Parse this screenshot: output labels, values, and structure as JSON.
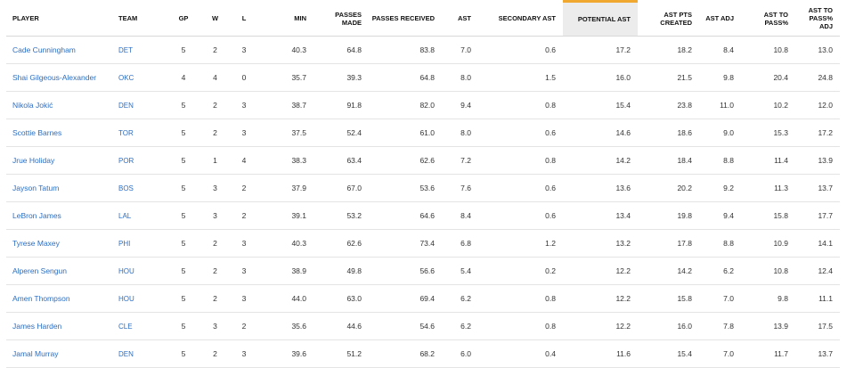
{
  "columns": [
    {
      "key": "player",
      "label": "PLAYER"
    },
    {
      "key": "team",
      "label": "TEAM"
    },
    {
      "key": "gp",
      "label": "GP"
    },
    {
      "key": "w",
      "label": "W"
    },
    {
      "key": "l",
      "label": "L"
    },
    {
      "key": "min",
      "label": "MIN"
    },
    {
      "key": "passes_made",
      "label": "PASSES MADE"
    },
    {
      "key": "passes_received",
      "label": "PASSES RECEIVED"
    },
    {
      "key": "ast",
      "label": "AST"
    },
    {
      "key": "secondary_ast",
      "label": "SECONDARY AST"
    },
    {
      "key": "potential_ast",
      "label": "POTENTIAL AST"
    },
    {
      "key": "ast_pts_created",
      "label": "AST PTS CREATED"
    },
    {
      "key": "ast_adj",
      "label": "AST ADJ"
    },
    {
      "key": "ast_to_pass",
      "label": "AST TO PASS%"
    },
    {
      "key": "ast_to_pass_adj",
      "label": "AST TO PASS% ADJ"
    }
  ],
  "sorted_column": "potential_ast",
  "accent_color": "#f0a830",
  "link_color": "#2b6ec3",
  "rows": [
    {
      "player": "Cade Cunningham",
      "team": "DET",
      "gp": "5",
      "w": "2",
      "l": "3",
      "min": "40.3",
      "passes_made": "64.8",
      "passes_received": "83.8",
      "ast": "7.0",
      "secondary_ast": "0.6",
      "potential_ast": "17.2",
      "ast_pts_created": "18.2",
      "ast_adj": "8.4",
      "ast_to_pass": "10.8",
      "ast_to_pass_adj": "13.0"
    },
    {
      "player": "Shai Gilgeous-Alexander",
      "team": "OKC",
      "gp": "4",
      "w": "4",
      "l": "0",
      "min": "35.7",
      "passes_made": "39.3",
      "passes_received": "64.8",
      "ast": "8.0",
      "secondary_ast": "1.5",
      "potential_ast": "16.0",
      "ast_pts_created": "21.5",
      "ast_adj": "9.8",
      "ast_to_pass": "20.4",
      "ast_to_pass_adj": "24.8"
    },
    {
      "player": "Nikola Jokić",
      "team": "DEN",
      "gp": "5",
      "w": "2",
      "l": "3",
      "min": "38.7",
      "passes_made": "91.8",
      "passes_received": "82.0",
      "ast": "9.4",
      "secondary_ast": "0.8",
      "potential_ast": "15.4",
      "ast_pts_created": "23.8",
      "ast_adj": "11.0",
      "ast_to_pass": "10.2",
      "ast_to_pass_adj": "12.0"
    },
    {
      "player": "Scottie Barnes",
      "team": "TOR",
      "gp": "5",
      "w": "2",
      "l": "3",
      "min": "37.5",
      "passes_made": "52.4",
      "passes_received": "61.0",
      "ast": "8.0",
      "secondary_ast": "0.6",
      "potential_ast": "14.6",
      "ast_pts_created": "18.6",
      "ast_adj": "9.0",
      "ast_to_pass": "15.3",
      "ast_to_pass_adj": "17.2"
    },
    {
      "player": "Jrue Holiday",
      "team": "POR",
      "gp": "5",
      "w": "1",
      "l": "4",
      "min": "38.3",
      "passes_made": "63.4",
      "passes_received": "62.6",
      "ast": "7.2",
      "secondary_ast": "0.8",
      "potential_ast": "14.2",
      "ast_pts_created": "18.4",
      "ast_adj": "8.8",
      "ast_to_pass": "11.4",
      "ast_to_pass_adj": "13.9"
    },
    {
      "player": "Jayson Tatum",
      "team": "BOS",
      "gp": "5",
      "w": "3",
      "l": "2",
      "min": "37.9",
      "passes_made": "67.0",
      "passes_received": "53.6",
      "ast": "7.6",
      "secondary_ast": "0.6",
      "potential_ast": "13.6",
      "ast_pts_created": "20.2",
      "ast_adj": "9.2",
      "ast_to_pass": "11.3",
      "ast_to_pass_adj": "13.7"
    },
    {
      "player": "LeBron James",
      "team": "LAL",
      "gp": "5",
      "w": "3",
      "l": "2",
      "min": "39.1",
      "passes_made": "53.2",
      "passes_received": "64.6",
      "ast": "8.4",
      "secondary_ast": "0.6",
      "potential_ast": "13.4",
      "ast_pts_created": "19.8",
      "ast_adj": "9.4",
      "ast_to_pass": "15.8",
      "ast_to_pass_adj": "17.7"
    },
    {
      "player": "Tyrese Maxey",
      "team": "PHI",
      "gp": "5",
      "w": "2",
      "l": "3",
      "min": "40.3",
      "passes_made": "62.6",
      "passes_received": "73.4",
      "ast": "6.8",
      "secondary_ast": "1.2",
      "potential_ast": "13.2",
      "ast_pts_created": "17.8",
      "ast_adj": "8.8",
      "ast_to_pass": "10.9",
      "ast_to_pass_adj": "14.1"
    },
    {
      "player": "Alperen Sengun",
      "team": "HOU",
      "gp": "5",
      "w": "2",
      "l": "3",
      "min": "38.9",
      "passes_made": "49.8",
      "passes_received": "56.6",
      "ast": "5.4",
      "secondary_ast": "0.2",
      "potential_ast": "12.2",
      "ast_pts_created": "14.2",
      "ast_adj": "6.2",
      "ast_to_pass": "10.8",
      "ast_to_pass_adj": "12.4"
    },
    {
      "player": "Amen Thompson",
      "team": "HOU",
      "gp": "5",
      "w": "2",
      "l": "3",
      "min": "44.0",
      "passes_made": "63.0",
      "passes_received": "69.4",
      "ast": "6.2",
      "secondary_ast": "0.8",
      "potential_ast": "12.2",
      "ast_pts_created": "15.8",
      "ast_adj": "7.0",
      "ast_to_pass": "9.8",
      "ast_to_pass_adj": "11.1"
    },
    {
      "player": "James Harden",
      "team": "CLE",
      "gp": "5",
      "w": "3",
      "l": "2",
      "min": "35.6",
      "passes_made": "44.6",
      "passes_received": "54.6",
      "ast": "6.2",
      "secondary_ast": "0.8",
      "potential_ast": "12.2",
      "ast_pts_created": "16.0",
      "ast_adj": "7.8",
      "ast_to_pass": "13.9",
      "ast_to_pass_adj": "17.5"
    },
    {
      "player": "Jamal Murray",
      "team": "DEN",
      "gp": "5",
      "w": "2",
      "l": "3",
      "min": "39.6",
      "passes_made": "51.2",
      "passes_received": "68.2",
      "ast": "6.0",
      "secondary_ast": "0.4",
      "potential_ast": "11.6",
      "ast_pts_created": "15.4",
      "ast_adj": "7.0",
      "ast_to_pass": "11.7",
      "ast_to_pass_adj": "13.7"
    }
  ]
}
